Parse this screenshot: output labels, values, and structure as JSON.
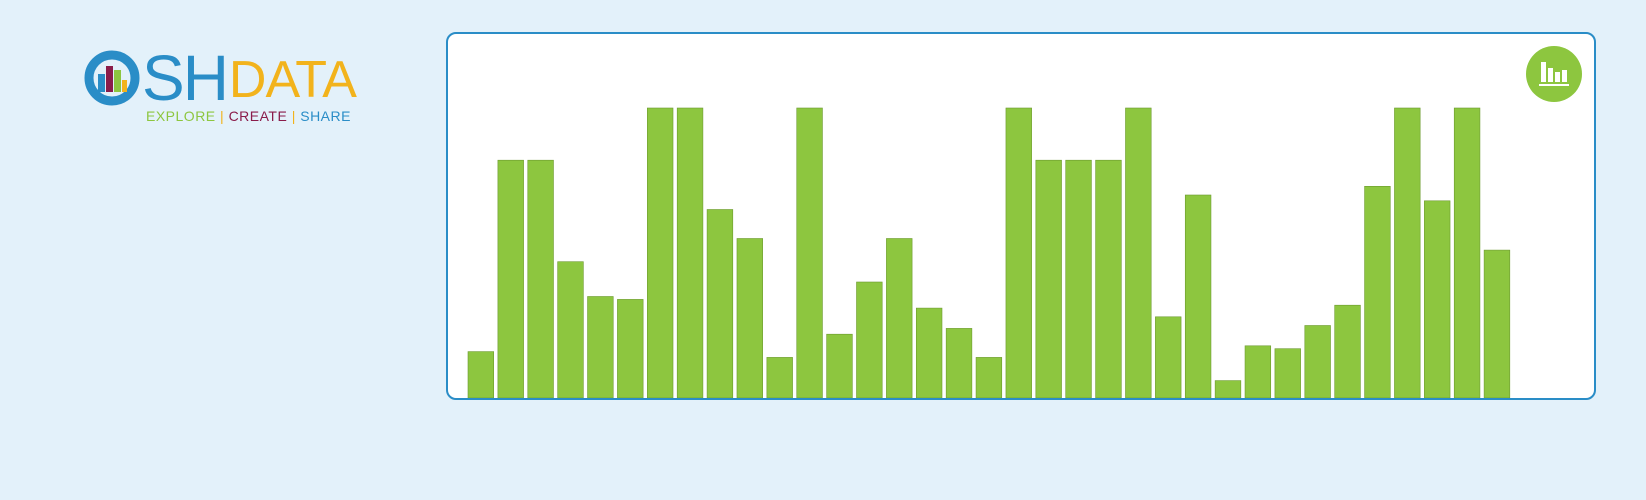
{
  "logo": {
    "brand_main": "SH",
    "brand_data": "DATA",
    "tagline": {
      "explore": "EXPLORE",
      "create": "CREATE",
      "share": "SHARE",
      "separator": "|"
    }
  },
  "toggle": {
    "icon": "bar-chart-icon",
    "color": "#8dc63f"
  },
  "colors": {
    "background": "#e3f1fa",
    "bar": "#8dc63f",
    "panel_border": "#2a8dc7",
    "brand_blue": "#2a8dc7",
    "brand_yellow": "#f2b31c",
    "brand_maroon": "#8a1c4a"
  },
  "chart_data": {
    "type": "bar",
    "title": "",
    "xlabel": "",
    "ylabel": "",
    "ylim": [
      0,
      100
    ],
    "grid": false,
    "values": [
      16,
      82,
      82,
      47,
      35,
      34,
      100,
      100,
      65,
      55,
      14,
      100,
      22,
      40,
      55,
      31,
      24,
      14,
      100,
      82,
      82,
      82,
      100,
      28,
      70,
      6,
      18,
      17,
      25,
      32,
      73,
      100,
      68,
      100,
      51
    ]
  }
}
